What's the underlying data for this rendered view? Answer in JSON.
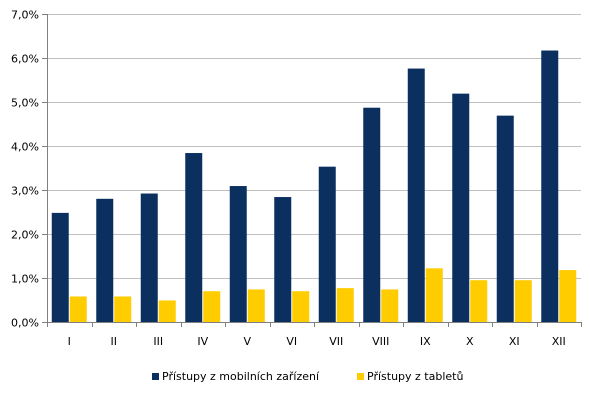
{
  "chart_data": {
    "type": "bar",
    "categories": [
      "I",
      "II",
      "III",
      "IV",
      "V",
      "VI",
      "VII",
      "VIII",
      "IX",
      "X",
      "XI",
      "XII"
    ],
    "series": [
      {
        "name": "Přístupy z mobilních zařízení",
        "color": "#0b3060",
        "values": [
          2.48,
          2.8,
          2.92,
          3.84,
          3.09,
          2.84,
          3.53,
          4.87,
          5.76,
          5.19,
          4.69,
          6.17
        ]
      },
      {
        "name": "Přístupy z tabletů",
        "color": "#ffcc00",
        "values": [
          0.58,
          0.58,
          0.49,
          0.7,
          0.74,
          0.7,
          0.77,
          0.74,
          1.22,
          0.95,
          0.95,
          1.18
        ]
      }
    ],
    "y_tick_labels": [
      "0,0%",
      "1,0%",
      "2,0%",
      "3,0%",
      "4,0%",
      "5,0%",
      "6,0%",
      "7,0%"
    ],
    "ylim": [
      0,
      7
    ],
    "y_unit": "%",
    "grid": true,
    "legend_position": "bottom",
    "gridline_color": "#c0c0c0",
    "axis_color": "#808080"
  }
}
